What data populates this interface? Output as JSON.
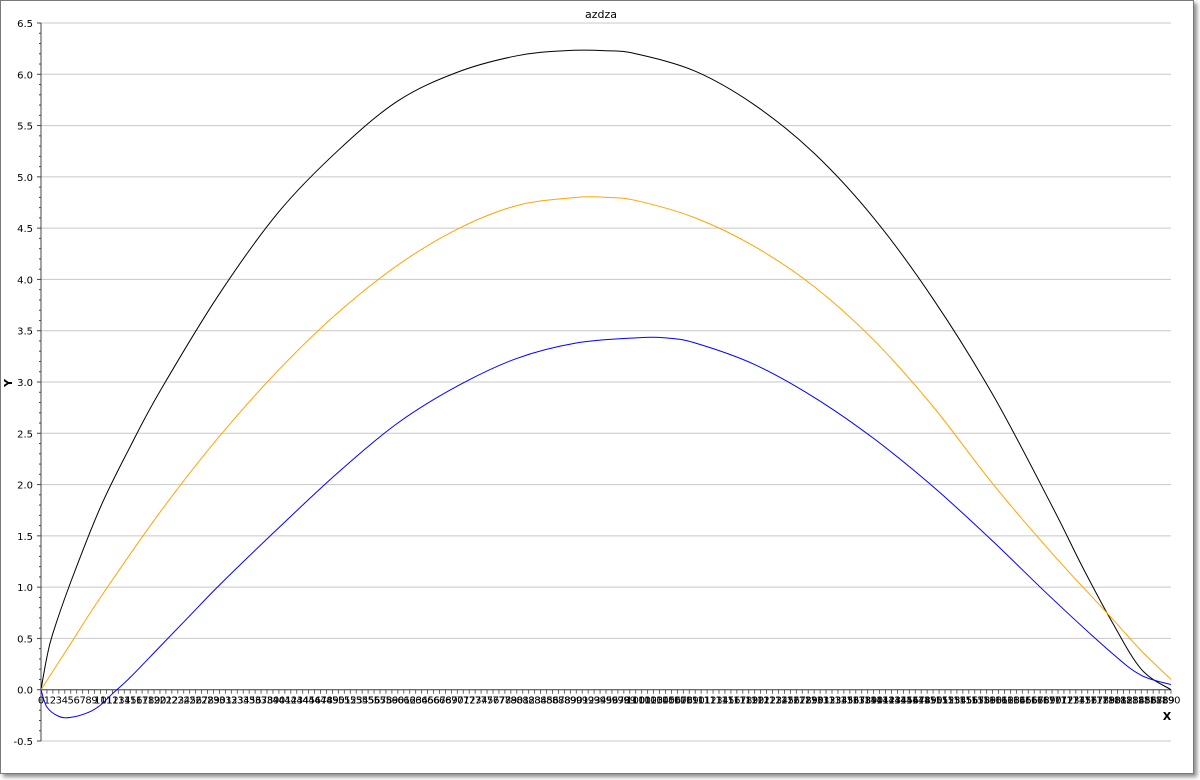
{
  "chart_data": {
    "type": "line",
    "title": "azdza",
    "xlabel": "X",
    "ylabel": "Y",
    "xlim": [
      0,
      190
    ],
    "ylim": [
      -0.5,
      6.5
    ],
    "y_ticks": [
      "-0.5",
      "0.0",
      "0.5",
      "1.0",
      "1.5",
      "2.0",
      "2.5",
      "3.0",
      "3.5",
      "4.0",
      "4.5",
      "5.0",
      "5.5",
      "6.0",
      "6.5"
    ],
    "x_tick_labels_note_visible": "integers 0..190 drawn densely and overlapping along the x-axis",
    "grid": true,
    "series": [
      {
        "color": "#000000",
        "x": [
          0,
          1,
          2,
          5,
          10,
          15,
          20,
          30,
          40,
          50,
          60,
          70,
          80,
          88,
          95,
          100,
          110,
          120,
          130,
          140,
          150,
          160,
          170,
          175,
          180,
          185,
          190
        ],
        "y": [
          0.0,
          0.32,
          0.55,
          1.05,
          1.78,
          2.37,
          2.91,
          3.86,
          4.66,
          5.26,
          5.74,
          6.02,
          6.18,
          6.23,
          6.23,
          6.2,
          6.03,
          5.7,
          5.23,
          4.6,
          3.81,
          2.88,
          1.79,
          1.21,
          0.67,
          0.2,
          0.0
        ]
      },
      {
        "color": "#ffa500",
        "x": [
          0,
          5,
          10,
          20,
          30,
          40,
          50,
          60,
          70,
          80,
          90,
          95,
          100,
          110,
          120,
          130,
          140,
          150,
          160,
          170,
          180,
          185,
          190
        ],
        "y": [
          0.0,
          0.45,
          0.9,
          1.73,
          2.47,
          3.12,
          3.68,
          4.14,
          4.49,
          4.72,
          4.8,
          4.8,
          4.77,
          4.6,
          4.32,
          3.93,
          3.41,
          2.76,
          2.01,
          1.33,
          0.7,
          0.38,
          0.1
        ]
      },
      {
        "color": "#0000ff",
        "x": [
          0,
          1,
          3,
          5,
          8,
          10,
          12,
          15,
          20,
          25,
          30,
          40,
          50,
          60,
          70,
          80,
          90,
          100,
          105,
          110,
          120,
          130,
          140,
          150,
          160,
          170,
          180,
          185,
          190
        ],
        "y": [
          0.0,
          -0.17,
          -0.26,
          -0.27,
          -0.22,
          -0.15,
          -0.04,
          0.12,
          0.42,
          0.72,
          1.02,
          1.58,
          2.12,
          2.6,
          2.96,
          3.23,
          3.38,
          3.43,
          3.43,
          3.38,
          3.17,
          2.85,
          2.45,
          1.98,
          1.45,
          0.89,
          0.36,
          0.14,
          0.05
        ]
      }
    ]
  }
}
